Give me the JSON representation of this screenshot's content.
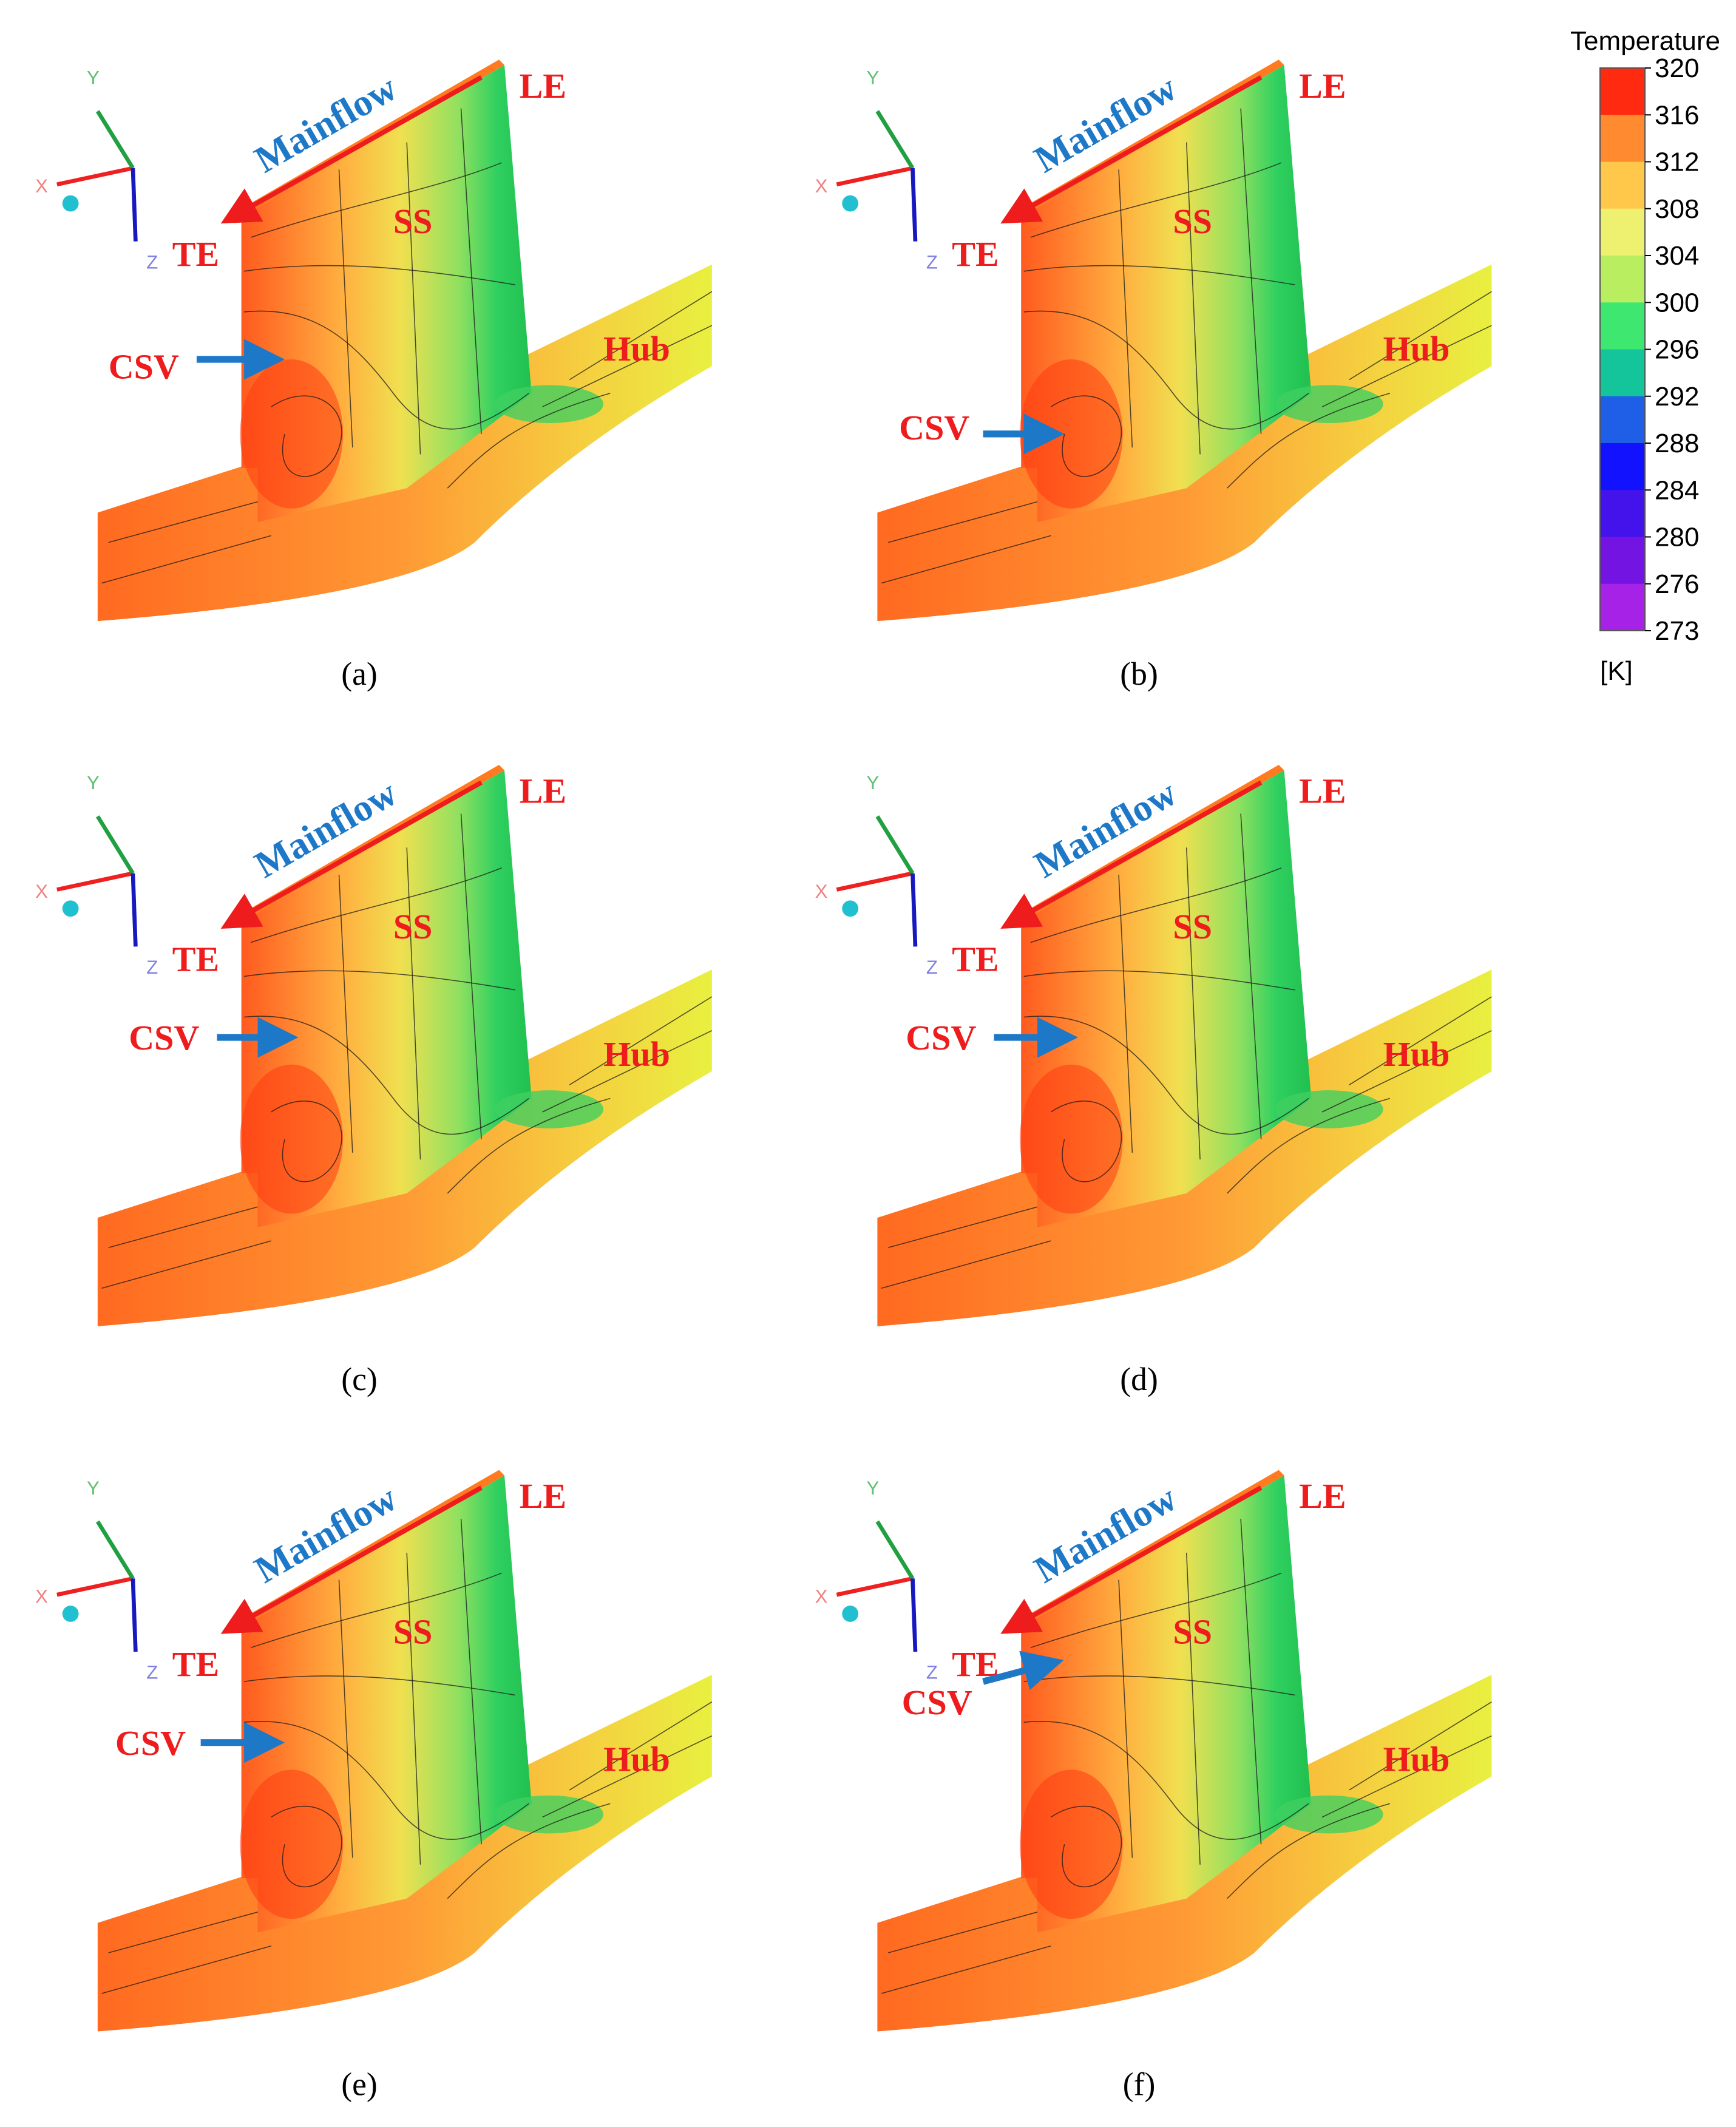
{
  "panels": [
    {
      "mainflow": "Mainflow",
      "le": "LE",
      "te": "TE",
      "ss": "SS",
      "csv": "CSV",
      "hub": "Hub",
      "x": "X",
      "y": "Y",
      "z": "Z",
      "caption": "(a)"
    },
    {
      "mainflow": "Mainflow",
      "le": "LE",
      "te": "TE",
      "ss": "SS",
      "csv": "CSV",
      "hub": "Hub",
      "x": "X",
      "y": "Y",
      "z": "Z",
      "caption": "(b)"
    },
    {
      "mainflow": "Mainflow",
      "le": "LE",
      "te": "TE",
      "ss": "SS",
      "csv": "CSV",
      "hub": "Hub",
      "x": "X",
      "y": "Y",
      "z": "Z",
      "caption": "(c)"
    },
    {
      "mainflow": "Mainflow",
      "le": "LE",
      "te": "TE",
      "ss": "SS",
      "csv": "CSV",
      "hub": "Hub",
      "x": "X",
      "y": "Y",
      "z": "Z",
      "caption": "(d)"
    },
    {
      "mainflow": "Mainflow",
      "le": "LE",
      "te": "TE",
      "ss": "SS",
      "csv": "CSV",
      "hub": "Hub",
      "x": "X",
      "y": "Y",
      "z": "Z",
      "caption": "(e)"
    },
    {
      "mainflow": "Mainflow",
      "le": "LE",
      "te": "TE",
      "ss": "SS",
      "csv": "CSV",
      "hub": "Hub",
      "x": "X",
      "y": "Y",
      "z": "Z",
      "caption": "(f)"
    }
  ],
  "colorbar": {
    "title": "Temperature",
    "unit": "[K]",
    "ticks": [
      320,
      316,
      312,
      308,
      304,
      300,
      296,
      292,
      288,
      284,
      280,
      276,
      273
    ],
    "colors": [
      "#ff2a10",
      "#ff8a30",
      "#ffc84a",
      "#eef070",
      "#b8ee60",
      "#3ee870",
      "#14c49a",
      "#1f5ee6",
      "#1212ff",
      "#4412ea",
      "#7414e2",
      "#a622e6",
      "#e040f4"
    ]
  }
}
